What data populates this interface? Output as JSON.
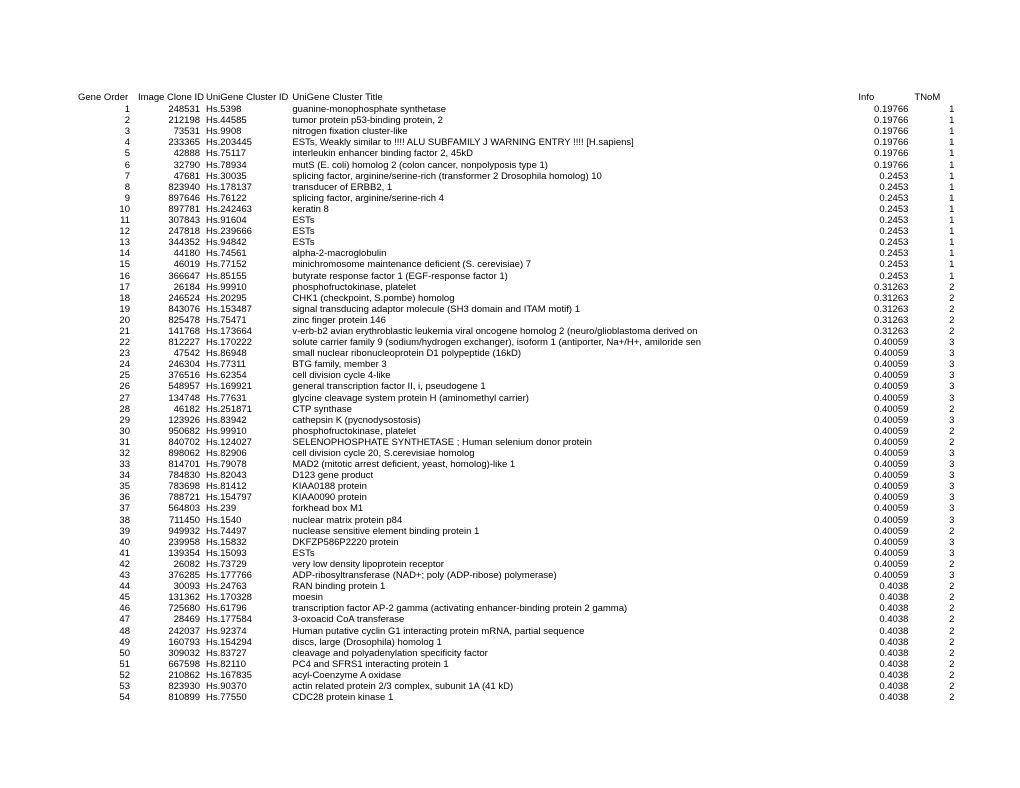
{
  "table": {
    "columns": [
      "Gene Order",
      "Image Clone ID",
      "UniGene Cluster ID",
      "UniGene Cluster Title",
      "Info",
      "TNoM"
    ],
    "rows": [
      {
        "order": 1,
        "clone": 248531,
        "cluster": "Hs.5398",
        "title": "guanine-monophosphate synthetase",
        "info": "0.19766",
        "tnom": 1
      },
      {
        "order": 2,
        "clone": 212198,
        "cluster": "Hs.44585",
        "title": "tumor protein p53-binding protein, 2",
        "info": "0.19766",
        "tnom": 1
      },
      {
        "order": 3,
        "clone": 73531,
        "cluster": "Hs.9908",
        "title": "nitrogen fixation cluster-like",
        "info": "0.19766",
        "tnom": 1
      },
      {
        "order": 4,
        "clone": 233365,
        "cluster": "Hs.203445",
        "title": "ESTs, Weakly similar to !!!! ALU SUBFAMILY J WARNING ENTRY !!!! [H.sapiens]",
        "info": "0.19766",
        "tnom": 1
      },
      {
        "order": 5,
        "clone": 42888,
        "cluster": "Hs.75117",
        "title": "interleukin enhancer binding factor 2, 45kD",
        "info": "0.19766",
        "tnom": 1
      },
      {
        "order": 6,
        "clone": 32790,
        "cluster": "Hs.78934",
        "title": "mutS (E. coli) homolog 2 (colon cancer, nonpolyposis type 1)",
        "info": "0.19766",
        "tnom": 1
      },
      {
        "order": 7,
        "clone": 47681,
        "cluster": "Hs.30035",
        "title": "splicing factor, arginine/serine-rich (transformer 2 Drosophila homolog) 10",
        "info": "0.2453",
        "tnom": 1
      },
      {
        "order": 8,
        "clone": 823940,
        "cluster": "Hs.178137",
        "title": "transducer of ERBB2, 1",
        "info": "0.2453",
        "tnom": 1
      },
      {
        "order": 9,
        "clone": 897646,
        "cluster": "Hs.76122",
        "title": "splicing factor, arginine/serine-rich 4",
        "info": "0.2453",
        "tnom": 1
      },
      {
        "order": 10,
        "clone": 897781,
        "cluster": "Hs.242463",
        "title": "keratin 8",
        "info": "0.2453",
        "tnom": 1
      },
      {
        "order": 11,
        "clone": 307843,
        "cluster": "Hs.91604",
        "title": "ESTs",
        "info": "0.2453",
        "tnom": 1
      },
      {
        "order": 12,
        "clone": 247818,
        "cluster": "Hs.239666",
        "title": "ESTs",
        "info": "0.2453",
        "tnom": 1
      },
      {
        "order": 13,
        "clone": 344352,
        "cluster": "Hs.94842",
        "title": "ESTs",
        "info": "0.2453",
        "tnom": 1
      },
      {
        "order": 14,
        "clone": 44180,
        "cluster": "Hs.74561",
        "title": "alpha-2-macroglobulin",
        "info": "0.2453",
        "tnom": 1
      },
      {
        "order": 15,
        "clone": 46019,
        "cluster": "Hs.77152",
        "title": "minichromosome maintenance deficient (S. cerevisiae) 7",
        "info": "0.2453",
        "tnom": 1
      },
      {
        "order": 16,
        "clone": 366647,
        "cluster": "Hs.85155",
        "title": "butyrate response factor 1 (EGF-response factor 1)",
        "info": "0.2453",
        "tnom": 1
      },
      {
        "order": 17,
        "clone": 26184,
        "cluster": "Hs.99910",
        "title": "phosphofructokinase, platelet",
        "info": "0.31263",
        "tnom": 2
      },
      {
        "order": 18,
        "clone": 246524,
        "cluster": "Hs.20295",
        "title": "CHK1 (checkpoint, S.pombe) homolog",
        "info": "0.31263",
        "tnom": 2
      },
      {
        "order": 19,
        "clone": 843076,
        "cluster": "Hs.153487",
        "title": "signal transducing adaptor molecule (SH3 domain and ITAM motif) 1",
        "info": "0.31263",
        "tnom": 2
      },
      {
        "order": 20,
        "clone": 825478,
        "cluster": "Hs.75471",
        "title": "zinc finger protein 146",
        "info": "0.31263",
        "tnom": 2
      },
      {
        "order": 21,
        "clone": 141768,
        "cluster": "Hs.173664",
        "title": "v-erb-b2 avian erythroblastic leukemia viral oncogene homolog 2 (neuro/glioblastoma derived on",
        "info": "0.31263",
        "tnom": 2
      },
      {
        "order": 22,
        "clone": 812227,
        "cluster": "Hs.170222",
        "title": "solute carrier family 9 (sodium/hydrogen exchanger), isoform 1 (antiporter, Na+/H+, amiloride sen",
        "info": "0.40059",
        "tnom": 3
      },
      {
        "order": 23,
        "clone": 47542,
        "cluster": "Hs.86948",
        "title": "small nuclear ribonucleoprotein D1 polypeptide (16kD)",
        "info": "0.40059",
        "tnom": 3
      },
      {
        "order": 24,
        "clone": 246304,
        "cluster": "Hs.77311",
        "title": "BTG family, member 3",
        "info": "0.40059",
        "tnom": 3
      },
      {
        "order": 25,
        "clone": 376516,
        "cluster": "Hs.62354",
        "title": "cell division cycle 4-like",
        "info": "0.40059",
        "tnom": 3
      },
      {
        "order": 26,
        "clone": 548957,
        "cluster": "Hs.169921",
        "title": "general transcription factor II, i, pseudogene 1",
        "info": "0.40059",
        "tnom": 3
      },
      {
        "order": 27,
        "clone": 134748,
        "cluster": "Hs.77631",
        "title": "glycine cleavage system protein H (aminomethyl carrier)",
        "info": "0.40059",
        "tnom": 3
      },
      {
        "order": 28,
        "clone": 46182,
        "cluster": "Hs.251871",
        "title": "CTP synthase",
        "info": "0.40059",
        "tnom": 2
      },
      {
        "order": 29,
        "clone": 123926,
        "cluster": "Hs.83942",
        "title": "cathepsin K (pycnodysostosis)",
        "info": "0.40059",
        "tnom": 3
      },
      {
        "order": 30,
        "clone": 950682,
        "cluster": "Hs.99910",
        "title": "phosphofructokinase, platelet",
        "info": "0.40059",
        "tnom": 2
      },
      {
        "order": 31,
        "clone": 840702,
        "cluster": "Hs.124027",
        "title": "SELENOPHOSPHATE SYNTHETASE ; Human selenium donor protein",
        "info": "0.40059",
        "tnom": 2
      },
      {
        "order": 32,
        "clone": 898062,
        "cluster": "Hs.82906",
        "title": "cell division cycle 20, S.cerevisiae homolog",
        "info": "0.40059",
        "tnom": 3
      },
      {
        "order": 33,
        "clone": 814701,
        "cluster": "Hs.79078",
        "title": "MAD2 (mitotic arrest deficient, yeast, homolog)-like 1",
        "info": "0.40059",
        "tnom": 3
      },
      {
        "order": 34,
        "clone": 784830,
        "cluster": "Hs.82043",
        "title": "D123 gene product",
        "info": "0.40059",
        "tnom": 3
      },
      {
        "order": 35,
        "clone": 783698,
        "cluster": "Hs.81412",
        "title": "KIAA0188 protein",
        "info": "0.40059",
        "tnom": 3
      },
      {
        "order": 36,
        "clone": 788721,
        "cluster": "Hs.154797",
        "title": "KIAA0090 protein",
        "info": "0.40059",
        "tnom": 3
      },
      {
        "order": 37,
        "clone": 564803,
        "cluster": "Hs.239",
        "title": "forkhead box M1",
        "info": "0.40059",
        "tnom": 3
      },
      {
        "order": 38,
        "clone": 711450,
        "cluster": "Hs.1540",
        "title": "nuclear matrix protein p84",
        "info": "0.40059",
        "tnom": 3
      },
      {
        "order": 39,
        "clone": 949932,
        "cluster": "Hs.74497",
        "title": "nuclease sensitive element binding protein 1",
        "info": "0.40059",
        "tnom": 2
      },
      {
        "order": 40,
        "clone": 239958,
        "cluster": "Hs.15832",
        "title": "DKFZP586P2220 protein",
        "info": "0.40059",
        "tnom": 3
      },
      {
        "order": 41,
        "clone": 139354,
        "cluster": "Hs.15093",
        "title": "ESTs",
        "info": "0.40059",
        "tnom": 3
      },
      {
        "order": 42,
        "clone": 26082,
        "cluster": "Hs.73729",
        "title": "very low density lipoprotein receptor",
        "info": "0.40059",
        "tnom": 2
      },
      {
        "order": 43,
        "clone": 376285,
        "cluster": "Hs.177766",
        "title": "ADP-ribosyltransferase (NAD+; poly (ADP-ribose) polymerase)",
        "info": "0.40059",
        "tnom": 3
      },
      {
        "order": 44,
        "clone": 30093,
        "cluster": "Hs.24763",
        "title": "RAN binding protein 1",
        "info": "0.4038",
        "tnom": 2
      },
      {
        "order": 45,
        "clone": 131362,
        "cluster": "Hs.170328",
        "title": "moesin",
        "info": "0.4038",
        "tnom": 2
      },
      {
        "order": 46,
        "clone": 725680,
        "cluster": "Hs.61796",
        "title": "transcription factor AP-2 gamma (activating enhancer-binding protein 2 gamma)",
        "info": "0.4038",
        "tnom": 2
      },
      {
        "order": 47,
        "clone": 28469,
        "cluster": "Hs.177584",
        "title": "3-oxoacid CoA transferase",
        "info": "0.4038",
        "tnom": 2
      },
      {
        "order": 48,
        "clone": 242037,
        "cluster": "Hs.92374",
        "title": "Human putative cyclin G1 interacting protein mRNA, partial sequence",
        "info": "0.4038",
        "tnom": 2
      },
      {
        "order": 49,
        "clone": 160793,
        "cluster": "Hs.154294",
        "title": "discs, large (Drosophila) homolog 1",
        "info": "0.4038",
        "tnom": 2
      },
      {
        "order": 50,
        "clone": 309032,
        "cluster": "Hs.83727",
        "title": "cleavage and polyadenylation specificity factor",
        "info": "0.4038",
        "tnom": 2
      },
      {
        "order": 51,
        "clone": 667598,
        "cluster": "Hs.82110",
        "title": "PC4 and SFRS1 interacting protein 1",
        "info": "0.4038",
        "tnom": 2
      },
      {
        "order": 52,
        "clone": 210862,
        "cluster": "Hs.167835",
        "title": "acyl-Coenzyme A oxidase",
        "info": "0.4038",
        "tnom": 2
      },
      {
        "order": 53,
        "clone": 823930,
        "cluster": "Hs.90370",
        "title": "actin related protein 2/3 complex, subunit 1A (41 kD)",
        "info": "0.4038",
        "tnom": 2
      },
      {
        "order": 54,
        "clone": 810899,
        "cluster": "Hs.77550",
        "title": "CDC28 protein kinase 1",
        "info": "0.4038",
        "tnom": 2
      }
    ]
  }
}
